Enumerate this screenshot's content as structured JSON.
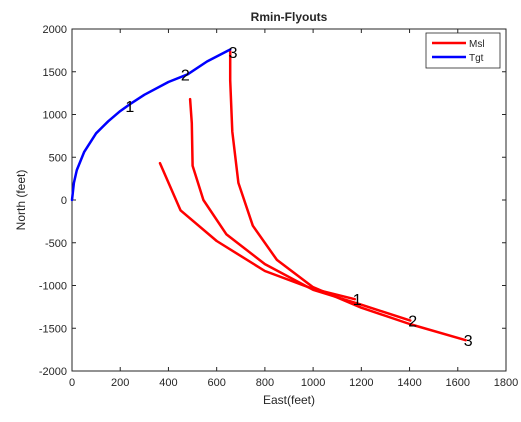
{
  "chart_data": {
    "type": "line",
    "title": "Rmin-Flyouts",
    "xlabel": "East(feet)",
    "ylabel": "North (feet)",
    "xlim": [
      0,
      1800
    ],
    "ylim": [
      -2000,
      2000
    ],
    "xticks": [
      0,
      200,
      400,
      600,
      800,
      1000,
      1200,
      1400,
      1600,
      1800
    ],
    "yticks": [
      -2000,
      -1500,
      -1000,
      -500,
      0,
      500,
      1000,
      1500,
      2000
    ],
    "grid": false,
    "legend_position": "top-right",
    "series": [
      {
        "name": "Msl",
        "color": "#ff0000",
        "paths": [
          {
            "x": [
              1173,
              1000,
              800,
              600,
              450,
              365
            ],
            "y": [
              -1160,
              -1040,
              -830,
              -480,
              -120,
              430
            ]
          },
          {
            "x": [
              1403,
              1200,
              1000,
              800,
              640,
              545,
              500,
              497,
              490
            ],
            "y": [
              -1410,
              -1225,
              -1050,
              -750,
              -400,
              0,
              400,
              900,
              1180
            ]
          },
          {
            "x": [
              1633,
              1400,
              1200,
              1000,
              850,
              750,
              690,
              665,
              656,
              656
            ],
            "y": [
              -1640,
              -1450,
              -1260,
              -1020,
              -700,
              -300,
              200,
              800,
              1400,
              1740
            ]
          }
        ]
      },
      {
        "name": "Tgt",
        "color": "#0000ff",
        "paths": [
          {
            "x": [
              0,
              8,
              20,
              50,
              100,
              150,
              200,
              240,
              300,
              400,
              480,
              560,
              656
            ],
            "y": [
              0,
              200,
              350,
              560,
              780,
              920,
              1040,
              1120,
              1230,
              1380,
              1470,
              1620,
              1760
            ]
          }
        ]
      }
    ],
    "annotations": [
      {
        "text": "1",
        "x": 240,
        "y": 1100
      },
      {
        "text": "2",
        "x": 470,
        "y": 1470
      },
      {
        "text": "3",
        "x": 668,
        "y": 1730
      },
      {
        "text": "1",
        "x": 1183,
        "y": -1160
      },
      {
        "text": "2",
        "x": 1413,
        "y": -1410
      },
      {
        "text": "3",
        "x": 1643,
        "y": -1640
      }
    ]
  }
}
